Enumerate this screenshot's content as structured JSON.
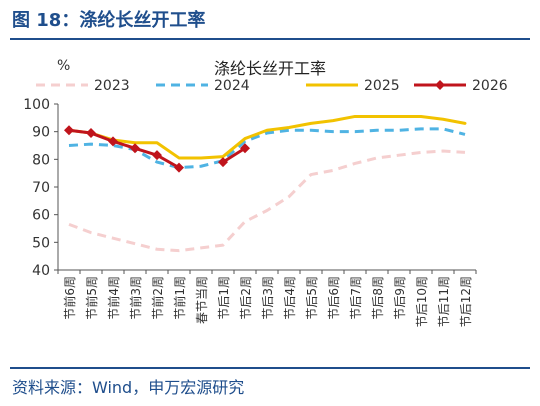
{
  "figure": {
    "title": "图 18：涤纶长丝开工率",
    "source": "资料来源：Wind，申万宏源研究"
  },
  "chart_data": {
    "type": "line",
    "title": "涤纶长丝开工率",
    "ylabel": "%",
    "xlabel": "",
    "ylim": [
      40,
      100
    ],
    "yticks": [
      40,
      50,
      60,
      70,
      80,
      90,
      100
    ],
    "grid": false,
    "legend_position": "top",
    "categories": [
      "节前6周",
      "节前5周",
      "节前4周",
      "节前3周",
      "节前2周",
      "节前1周",
      "春节当周",
      "节后1周",
      "节后2周",
      "节后3周",
      "节后4周",
      "节后5周",
      "节后6周",
      "节后7周",
      "节后8周",
      "节后9周",
      "节后10周",
      "节后11周",
      "节后12周"
    ],
    "series": [
      {
        "name": "2023",
        "color": "#f5cfcf",
        "dash": "dash",
        "values": [
          56.5,
          53.5,
          51.5,
          49.5,
          47.5,
          47.0,
          48.0,
          49.0,
          57.5,
          61.5,
          66.5,
          74.5,
          76.0,
          78.5,
          80.5,
          81.5,
          82.5,
          83.0,
          82.5
        ]
      },
      {
        "name": "2024",
        "color": "#4fb3e3",
        "dash": "dash",
        "values": [
          85.0,
          85.5,
          85.0,
          83.5,
          79.0,
          77.0,
          77.5,
          79.5,
          86.5,
          89.5,
          90.5,
          90.5,
          90.0,
          90.0,
          90.5,
          90.5,
          91.0,
          91.0,
          89.0
        ]
      },
      {
        "name": "2025",
        "color": "#f2c200",
        "dash": "solid",
        "values": [
          90.5,
          89.5,
          87.0,
          86.0,
          86.0,
          80.5,
          80.5,
          81.0,
          87.5,
          90.5,
          91.5,
          93.0,
          94.0,
          95.5,
          95.5,
          95.5,
          95.5,
          94.5,
          93.0
        ]
      },
      {
        "name": "2026",
        "color": "#c0141c",
        "dash": "solid",
        "marker": "diamond",
        "values": [
          90.5,
          89.5,
          86.5,
          84.0,
          81.5,
          77.0,
          null,
          79.0,
          84.0,
          null,
          null,
          null,
          null,
          null,
          null,
          null,
          null,
          null,
          null
        ]
      }
    ]
  }
}
